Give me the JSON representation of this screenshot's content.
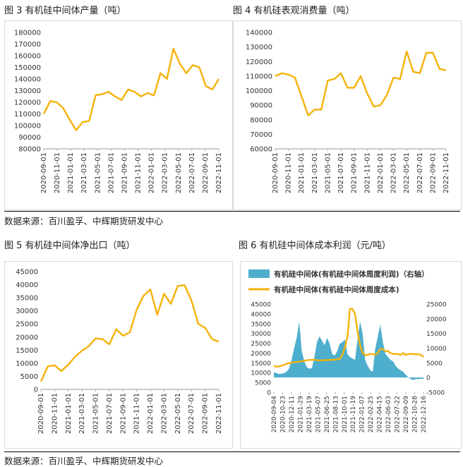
{
  "captions": {
    "fig3": "图 3 有机硅中间体产量（吨）",
    "fig4": "图 4 有机硅表观消费量（吨）",
    "fig5": "图 5 有机硅中间体净出口（吨）",
    "fig6": "图 6 有机硅中间体成本利润（元/吨）"
  },
  "sources": {
    "top": "数据来源：百川盈孚、中辉期货研发中心",
    "bottom": "数据来源：百川盈孚、中辉期货研发中心"
  },
  "colors": {
    "line": "#F5B20A",
    "area": "#4EAECD"
  },
  "chart_data": [
    {
      "id": "fig3",
      "type": "line",
      "title": "图 3 有机硅中间体产量（吨）",
      "ylim": [
        80000,
        180000
      ],
      "yticks": [
        80000,
        90000,
        100000,
        110000,
        120000,
        130000,
        140000,
        150000,
        160000,
        170000,
        180000
      ],
      "xticks": [
        "2020-09-01",
        "2020-11-01",
        "2021-01-01",
        "2021-03-01",
        "2021-05-01",
        "2021-07-01",
        "2021-09-01",
        "2021-11-01",
        "2022-01-01",
        "2022-03-01",
        "2022-05-01",
        "2022-07-01",
        "2022-09-01",
        "2022-11-01"
      ],
      "series": [
        {
          "name": "产量",
          "values": [
            110000,
            121000,
            120000,
            115000,
            105000,
            96000,
            103000,
            104000,
            126000,
            127000,
            129000,
            125000,
            122000,
            131000,
            129000,
            125000,
            128000,
            126000,
            145000,
            140000,
            166000,
            153000,
            145000,
            152000,
            150000,
            134000,
            131000,
            140000
          ]
        }
      ]
    },
    {
      "id": "fig4",
      "type": "line",
      "title": "图 4 有机硅表观消费量（吨）",
      "ylim": [
        60000,
        140000
      ],
      "yticks": [
        60000,
        70000,
        80000,
        90000,
        100000,
        110000,
        120000,
        130000,
        140000
      ],
      "xticks": [
        "2020-09-01",
        "2020-11-01",
        "2021-01-01",
        "2021-03-01",
        "2021-05-01",
        "2021-07-01",
        "2021-09-01",
        "2021-11-01",
        "2022-01-01",
        "2022-03-01",
        "2022-05-01",
        "2022-07-01",
        "2022-09-01",
        "2022-11-01"
      ],
      "series": [
        {
          "name": "表观消费量",
          "values": [
            110000,
            112000,
            111000,
            109000,
            96000,
            83000,
            87000,
            87000,
            107000,
            108000,
            112000,
            102000,
            102000,
            110000,
            98000,
            89000,
            90000,
            97000,
            109000,
            108000,
            127000,
            113000,
            112000,
            126000,
            126000,
            115000,
            114000
          ]
        }
      ]
    },
    {
      "id": "fig5",
      "type": "line",
      "title": "图 5 有机硅中间体净出口（吨）",
      "ylim": [
        0,
        45000
      ],
      "yticks": [
        0,
        5000,
        10000,
        15000,
        20000,
        25000,
        30000,
        35000,
        40000,
        45000
      ],
      "xticks": [
        "2020-09-01",
        "2020-11-01",
        "2021-01-01",
        "2021-03-01",
        "2021-05-01",
        "2021-07-01",
        "2021-09-01",
        "2021-11-01",
        "2022-01-01",
        "2022-03-01",
        "2022-05-01",
        "2022-07-01",
        "2022-09-01",
        "2022-11-01"
      ],
      "series": [
        {
          "name": "净出口",
          "values": [
            3000,
            8800,
            9200,
            7000,
            9500,
            12500,
            14800,
            16500,
            19500,
            19200,
            17200,
            23000,
            20500,
            21800,
            30500,
            35800,
            38200,
            28500,
            36500,
            32700,
            39500,
            39800,
            34000,
            25000,
            23500,
            19300,
            18200
          ]
        }
      ]
    },
    {
      "id": "fig6",
      "type": "line+area",
      "title": "图 6 有机硅中间体成本利润（元/吨）",
      "legend": [
        "有机硅中间体(有机硅中间体周度利润)（右轴）",
        "有机硅中间体(有机硅中间体周度成本)"
      ],
      "ylim_left": [
        0,
        45000
      ],
      "yticks_left": [
        0,
        5000,
        10000,
        15000,
        20000,
        25000,
        30000,
        35000,
        40000,
        45000
      ],
      "ylim_right": [
        -5000,
        25000
      ],
      "yticks_right": [
        -5000,
        0,
        5000,
        10000,
        15000,
        20000,
        25000
      ],
      "xticks": [
        "2020-09-04",
        "2020-10-23",
        "2020-12-11",
        "2021-01-29",
        "2021-03-19",
        "2021-05-07",
        "2021-06-25",
        "2021-08-13",
        "2021-10-01",
        "2021-11-19",
        "2022-01-07",
        "2022-02-25",
        "2022-04-15",
        "2022-06-03",
        "2022-07-22",
        "2022-09-09",
        "2022-10-28",
        "2022-12-16"
      ],
      "series": [
        {
          "name": "有机硅中间体(有机硅中间体周度利润)（右轴）",
          "axis": "right",
          "values": [
            1800,
            1500,
            1200,
            1300,
            1500,
            2000,
            3000,
            6000,
            10000,
            13500,
            19000,
            9000,
            5500,
            3500,
            3000,
            3200,
            7000,
            12000,
            14000,
            12500,
            11000,
            13500,
            11500,
            8000,
            7500,
            9000,
            11500,
            12000,
            13000,
            8000,
            7000,
            6500,
            6000,
            13000,
            19000,
            15000,
            6000,
            4000,
            2500,
            2000,
            10000,
            14000,
            18000,
            12000,
            8000,
            7000,
            6000,
            5500,
            4000,
            3000,
            2500,
            2000,
            1000,
            0,
            -500,
            -800,
            -500,
            -600,
            -400,
            -500
          ]
        },
        {
          "name": "有机硅中间体(有机硅中间体周度成本)",
          "axis": "left",
          "values": [
            13500,
            13000,
            13200,
            13500,
            14000,
            14500,
            14800,
            15000,
            15300,
            15500,
            15500,
            15800,
            16000,
            16300,
            16500,
            16500,
            16600,
            16300,
            16200,
            16300,
            16300,
            16400,
            16500,
            16500,
            16600,
            16800,
            17000,
            19000,
            23000,
            28000,
            42500,
            42500,
            40000,
            31000,
            24000,
            20000,
            19000,
            19000,
            19500,
            19500,
            19000,
            20000,
            22000,
            22000,
            21000,
            21000,
            20000,
            19500,
            19500,
            19500,
            19000,
            20000,
            19000,
            19500,
            19500,
            19500,
            19300,
            19500,
            19000,
            18000
          ]
        }
      ]
    }
  ]
}
